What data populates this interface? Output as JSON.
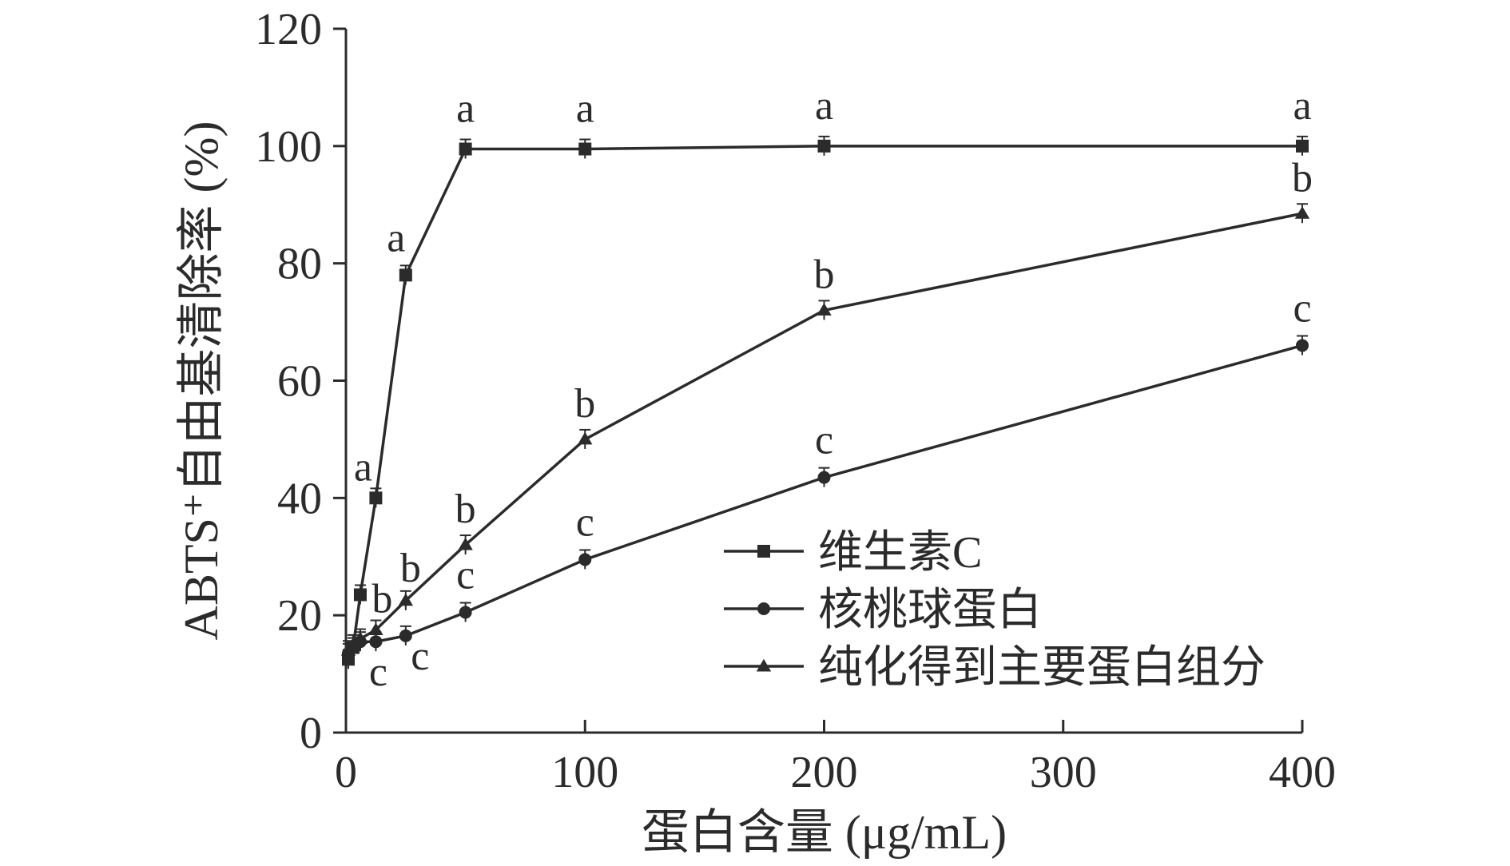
{
  "chart_data": {
    "type": "line",
    "xlabel": "蛋白含量 (μg/mL)",
    "ylabel": "ABTS⁺自由基清除率 (%)",
    "xlim": [
      0,
      400
    ],
    "ylim": [
      0,
      120
    ],
    "xticks": [
      0,
      100,
      200,
      300,
      400
    ],
    "yticks": [
      0,
      20,
      40,
      60,
      80,
      100,
      120
    ],
    "grid": false,
    "legend_position": "bottom-right",
    "series": [
      {
        "name": "维生素C",
        "marker": "square",
        "x": [
          1,
          3,
          6,
          12.5,
          25,
          50,
          100,
          200,
          400
        ],
        "y": [
          12.5,
          14.5,
          23.5,
          40,
          78,
          99.5,
          99.5,
          100,
          100
        ],
        "labels": [
          "",
          "",
          "",
          "a",
          "a",
          "a",
          "a",
          "a",
          "a"
        ]
      },
      {
        "name": "核桃球蛋白",
        "marker": "circle",
        "x": [
          1,
          3,
          6,
          12.5,
          25,
          50,
          100,
          200,
          400
        ],
        "y": [
          13.5,
          14.5,
          15.5,
          15.5,
          16.5,
          20.5,
          29.5,
          43.5,
          66
        ],
        "labels": [
          "",
          "",
          "",
          "c",
          "c",
          "c",
          "c",
          "c",
          "c"
        ]
      },
      {
        "name": "纯化得到主要蛋白组分",
        "marker": "triangle",
        "x": [
          1,
          3,
          6,
          12.5,
          25,
          50,
          100,
          200,
          400
        ],
        "y": [
          14,
          15,
          16,
          17.5,
          22.5,
          32,
          50,
          72,
          88.5
        ],
        "labels": [
          "",
          "",
          "",
          "b",
          "b",
          "b",
          "b",
          "b",
          "b"
        ]
      }
    ]
  }
}
